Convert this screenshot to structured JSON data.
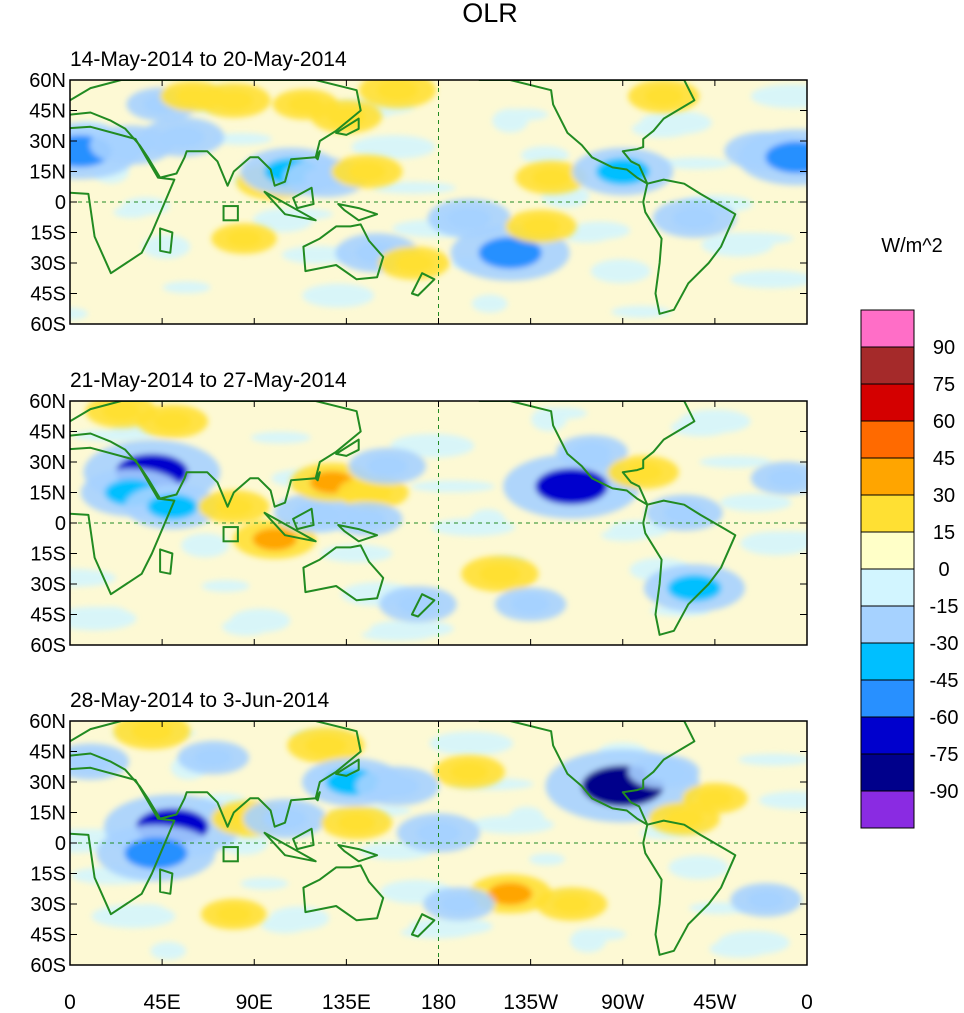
{
  "chart_data": {
    "type": "heatmap",
    "title": "OLR",
    "units_label": "W/m^2",
    "panels": [
      {
        "period": "14-May-2014 to 20-May-2014",
        "anomalies": [
          {
            "lon": 5,
            "lat": 25,
            "value": -60
          },
          {
            "lon": 30,
            "lat": 28,
            "value": -30
          },
          {
            "lon": 45,
            "lat": 48,
            "value": -20
          },
          {
            "lon": 55,
            "lat": 32,
            "value": -30
          },
          {
            "lon": 60,
            "lat": 52,
            "value": 15
          },
          {
            "lon": 80,
            "lat": 50,
            "value": 22
          },
          {
            "lon": 100,
            "lat": 10,
            "value": 25
          },
          {
            "lon": 108,
            "lat": 15,
            "value": -45
          },
          {
            "lon": 115,
            "lat": 48,
            "value": 15
          },
          {
            "lon": 125,
            "lat": 12,
            "value": -30
          },
          {
            "lon": 135,
            "lat": 42,
            "value": 20
          },
          {
            "lon": 145,
            "lat": 15,
            "value": 20
          },
          {
            "lon": 150,
            "lat": -25,
            "value": -30
          },
          {
            "lon": 160,
            "lat": 55,
            "value": 25
          },
          {
            "lon": 195,
            "lat": -8,
            "value": -30
          },
          {
            "lon": 215,
            "lat": -25,
            "value": -60
          },
          {
            "lon": 230,
            "lat": -12,
            "value": 20
          },
          {
            "lon": 235,
            "lat": 12,
            "value": 20
          },
          {
            "lon": 270,
            "lat": 15,
            "value": -45
          },
          {
            "lon": 290,
            "lat": 52,
            "value": 20
          },
          {
            "lon": 305,
            "lat": -8,
            "value": -30
          },
          {
            "lon": 340,
            "lat": 25,
            "value": -30
          },
          {
            "lon": 355,
            "lat": 22,
            "value": -60
          },
          {
            "lon": 168,
            "lat": -30,
            "value": 20
          },
          {
            "lon": 85,
            "lat": -18,
            "value": 15
          }
        ]
      },
      {
        "period": "21-May-2014 to 27-May-2014",
        "anomalies": [
          {
            "lon": 40,
            "lat": 25,
            "value": -75
          },
          {
            "lon": 30,
            "lat": 15,
            "value": -45
          },
          {
            "lon": 50,
            "lat": 8,
            "value": -40
          },
          {
            "lon": 25,
            "lat": 55,
            "value": 20
          },
          {
            "lon": 50,
            "lat": 50,
            "value": 20
          },
          {
            "lon": 80,
            "lat": 8,
            "value": 20
          },
          {
            "lon": 100,
            "lat": -8,
            "value": 30
          },
          {
            "lon": 120,
            "lat": 5,
            "value": -30
          },
          {
            "lon": 128,
            "lat": 20,
            "value": 30
          },
          {
            "lon": 148,
            "lat": 15,
            "value": 20
          },
          {
            "lon": 145,
            "lat": 2,
            "value": -20
          },
          {
            "lon": 155,
            "lat": 28,
            "value": -25
          },
          {
            "lon": 245,
            "lat": 18,
            "value": -75
          },
          {
            "lon": 255,
            "lat": 35,
            "value": -20
          },
          {
            "lon": 280,
            "lat": 25,
            "value": 20
          },
          {
            "lon": 300,
            "lat": 5,
            "value": -25
          },
          {
            "lon": 305,
            "lat": -32,
            "value": -45
          },
          {
            "lon": 210,
            "lat": -25,
            "value": 25
          },
          {
            "lon": 225,
            "lat": -40,
            "value": -20
          },
          {
            "lon": 170,
            "lat": -40,
            "value": -25
          },
          {
            "lon": 350,
            "lat": 22,
            "value": -20
          }
        ]
      },
      {
        "period": "28-May-2014 to 3-Jun-2014",
        "anomalies": [
          {
            "lon": 50,
            "lat": 8,
            "value": -75
          },
          {
            "lon": 42,
            "lat": -5,
            "value": -60
          },
          {
            "lon": 40,
            "lat": 55,
            "value": 25
          },
          {
            "lon": 10,
            "lat": 40,
            "value": -25
          },
          {
            "lon": 70,
            "lat": 42,
            "value": -20
          },
          {
            "lon": 88,
            "lat": 12,
            "value": 25
          },
          {
            "lon": 105,
            "lat": 12,
            "value": -30
          },
          {
            "lon": 125,
            "lat": 48,
            "value": 25
          },
          {
            "lon": 138,
            "lat": 30,
            "value": -45
          },
          {
            "lon": 140,
            "lat": 10,
            "value": 20
          },
          {
            "lon": 160,
            "lat": 28,
            "value": -30
          },
          {
            "lon": 180,
            "lat": 5,
            "value": -30
          },
          {
            "lon": 195,
            "lat": 35,
            "value": 20
          },
          {
            "lon": 215,
            "lat": -25,
            "value": 30
          },
          {
            "lon": 245,
            "lat": -30,
            "value": 20
          },
          {
            "lon": 270,
            "lat": 28,
            "value": -90
          },
          {
            "lon": 290,
            "lat": 35,
            "value": -20
          },
          {
            "lon": 300,
            "lat": 12,
            "value": 20
          },
          {
            "lon": 315,
            "lat": 22,
            "value": 15
          },
          {
            "lon": 80,
            "lat": -35,
            "value": 15
          },
          {
            "lon": 340,
            "lat": -28,
            "value": -20
          },
          {
            "lon": 190,
            "lat": -30,
            "value": -20
          }
        ]
      }
    ],
    "x_ticks": [
      "0",
      "45E",
      "90E",
      "135E",
      "180",
      "135W",
      "90W",
      "45W",
      "0"
    ],
    "x_tick_lons": [
      0,
      45,
      90,
      135,
      180,
      225,
      270,
      315,
      360
    ],
    "y_ticks": [
      "60N",
      "45N",
      "30N",
      "15N",
      "0",
      "15S",
      "30S",
      "45S",
      "60S"
    ],
    "y_tick_lats": [
      60,
      45,
      30,
      15,
      0,
      -15,
      -30,
      -45,
      -60
    ],
    "xlim": [
      0,
      360
    ],
    "ylim": [
      -60,
      60
    ],
    "colorbar": {
      "labels": [
        "90",
        "75",
        "60",
        "45",
        "30",
        "15",
        "0",
        "-15",
        "-30",
        "-45",
        "-60",
        "-75",
        "-90"
      ],
      "levels": [
        90,
        75,
        60,
        45,
        30,
        15,
        0,
        -15,
        -30,
        -45,
        -60,
        -75,
        -90
      ],
      "colors": [
        "#ff6ec7",
        "#a52a2a",
        "#d40000",
        "#ff6a00",
        "#ffa500",
        "#ffe033",
        "#ffffc8",
        "#d2f5ff",
        "#a6d2ff",
        "#00bfff",
        "#2890ff",
        "#0000cd",
        "#00008b",
        "#8a2be2"
      ]
    },
    "land_color": "#228b22",
    "grid_color": "#228b22"
  }
}
